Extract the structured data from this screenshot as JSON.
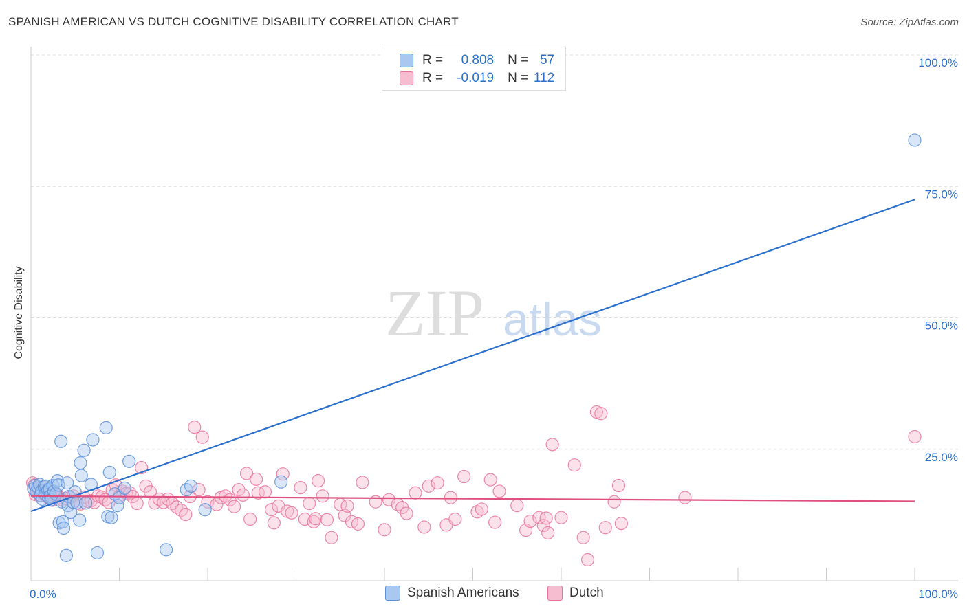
{
  "header": {
    "title": "SPANISH AMERICAN VS DUTCH COGNITIVE DISABILITY CORRELATION CHART",
    "source": "Source: ZipAtlas.com"
  },
  "watermark": {
    "zip": "ZIP",
    "atlas": "atlas"
  },
  "stats": {
    "r_label": "R =",
    "n_label": "N =",
    "rows": [
      {
        "r": "0.808",
        "n": "57"
      },
      {
        "r": "-0.019",
        "n": "112"
      }
    ]
  },
  "legend": {
    "items": [
      "Spanish Americans",
      "Dutch"
    ]
  },
  "colors": {
    "blue_fill": "#a9c8f0",
    "blue_stroke": "#5b8fd8",
    "blue_line": "#2a6fcc",
    "pink_fill": "#f6bcd0",
    "pink_stroke": "#e8739a",
    "pink_line": "#e0507e",
    "tick_label": "#2a6fcc",
    "grid": "#dcdcdc"
  },
  "chart_data": {
    "type": "scatter",
    "title": "SPANISH AMERICAN VS DUTCH COGNITIVE DISABILITY CORRELATION CHART",
    "xlabel": "",
    "ylabel": "Cognitive Disability",
    "xlim": [
      0,
      100
    ],
    "ylim": [
      0,
      100
    ],
    "x_tick_labels": [
      "0.0%",
      "100.0%"
    ],
    "y_ticks": [
      25,
      50,
      75,
      100
    ],
    "y_tick_labels": [
      "25.0%",
      "50.0%",
      "75.0%",
      "100.0%"
    ],
    "grid": true,
    "series": [
      {
        "name": "Spanish Americans",
        "r": 0.808,
        "n": 57,
        "trend": [
          [
            0,
            13.2
          ],
          [
            100,
            72.5
          ]
        ],
        "points": [
          [
            0.3,
            17.5
          ],
          [
            0.5,
            18.1
          ],
          [
            0.6,
            16.9
          ],
          [
            0.8,
            17.8
          ],
          [
            1.0,
            18.3
          ],
          [
            1.1,
            16.2
          ],
          [
            1.2,
            17.0
          ],
          [
            1.3,
            15.5
          ],
          [
            1.5,
            17.9
          ],
          [
            1.6,
            16.5
          ],
          [
            1.7,
            18.0
          ],
          [
            1.8,
            16.8
          ],
          [
            1.9,
            17.2
          ],
          [
            2.0,
            15.9
          ],
          [
            2.1,
            17.4
          ],
          [
            2.2,
            16.1
          ],
          [
            2.3,
            15.4
          ],
          [
            2.5,
            18.1
          ],
          [
            2.6,
            17.0
          ],
          [
            2.8,
            16.5
          ],
          [
            3.0,
            19.0
          ],
          [
            3.1,
            18.2
          ],
          [
            3.2,
            11.0
          ],
          [
            3.4,
            26.5
          ],
          [
            3.5,
            15.0
          ],
          [
            3.6,
            11.2
          ],
          [
            3.7,
            10.0
          ],
          [
            4.0,
            4.8
          ],
          [
            4.1,
            18.6
          ],
          [
            4.2,
            14.3
          ],
          [
            4.3,
            16.0
          ],
          [
            4.5,
            13.0
          ],
          [
            4.8,
            14.9
          ],
          [
            5.0,
            16.9
          ],
          [
            5.2,
            14.8
          ],
          [
            5.5,
            11.5
          ],
          [
            5.6,
            22.4
          ],
          [
            5.7,
            20.0
          ],
          [
            6.0,
            24.8
          ],
          [
            6.2,
            14.8
          ],
          [
            6.8,
            18.3
          ],
          [
            7.0,
            26.8
          ],
          [
            7.5,
            5.3
          ],
          [
            8.5,
            29.1
          ],
          [
            8.7,
            12.2
          ],
          [
            8.9,
            20.6
          ],
          [
            9.1,
            12.0
          ],
          [
            9.5,
            16.5
          ],
          [
            9.8,
            14.3
          ],
          [
            10.0,
            15.8
          ],
          [
            10.6,
            17.6
          ],
          [
            11.1,
            22.7
          ],
          [
            15.3,
            5.9
          ],
          [
            17.6,
            17.3
          ],
          [
            18.1,
            18.0
          ],
          [
            19.7,
            13.5
          ],
          [
            28.3,
            18.8
          ],
          [
            100,
            83.8
          ]
        ]
      },
      {
        "name": "Dutch",
        "r": -0.019,
        "n": 112,
        "trend": [
          [
            0,
            16.1
          ],
          [
            100,
            15.1
          ]
        ],
        "points": [
          [
            0.2,
            18.6
          ],
          [
            0.4,
            18.2
          ],
          [
            0.5,
            16.4
          ],
          [
            0.7,
            16.9
          ],
          [
            0.8,
            17.5
          ],
          [
            1.0,
            16.2
          ],
          [
            1.2,
            17.2
          ],
          [
            1.3,
            16.7
          ],
          [
            1.4,
            17.7
          ],
          [
            1.6,
            16.2
          ],
          [
            1.7,
            17.3
          ],
          [
            1.9,
            16.0
          ],
          [
            2.0,
            15.7
          ],
          [
            2.2,
            16.4
          ],
          [
            2.4,
            15.3
          ],
          [
            2.6,
            17.0
          ],
          [
            2.8,
            16.0
          ],
          [
            3.0,
            16.3
          ],
          [
            3.3,
            15.8
          ],
          [
            3.6,
            15.3
          ],
          [
            4.0,
            15.6
          ],
          [
            4.4,
            15.8
          ],
          [
            4.8,
            16.1
          ],
          [
            5.2,
            15.3
          ],
          [
            5.6,
            14.6
          ],
          [
            6.0,
            15.9
          ],
          [
            6.4,
            15.1
          ],
          [
            6.8,
            15.2
          ],
          [
            7.2,
            14.9
          ],
          [
            7.6,
            16.1
          ],
          [
            8.0,
            15.9
          ],
          [
            8.4,
            15.4
          ],
          [
            8.8,
            14.9
          ],
          [
            9.2,
            17.3
          ],
          [
            9.6,
            18.2
          ],
          [
            10.0,
            16.1
          ],
          [
            10.4,
            17.0
          ],
          [
            10.8,
            16.6
          ],
          [
            11.2,
            16.7
          ],
          [
            11.5,
            16.0
          ],
          [
            12.0,
            14.7
          ],
          [
            12.5,
            21.5
          ],
          [
            13.0,
            18.0
          ],
          [
            13.5,
            16.9
          ],
          [
            14.0,
            14.8
          ],
          [
            14.5,
            15.5
          ],
          [
            15.0,
            14.9
          ],
          [
            15.5,
            15.5
          ],
          [
            16.0,
            14.7
          ],
          [
            16.5,
            14.0
          ],
          [
            17.0,
            13.4
          ],
          [
            17.5,
            12.6
          ],
          [
            18.0,
            16.0
          ],
          [
            18.5,
            29.2
          ],
          [
            19.0,
            17.3
          ],
          [
            19.4,
            27.3
          ],
          [
            20.0,
            15.0
          ],
          [
            21.0,
            14.5
          ],
          [
            21.5,
            15.8
          ],
          [
            22.0,
            16.1
          ],
          [
            22.5,
            15.4
          ],
          [
            23.0,
            14.1
          ],
          [
            23.5,
            17.3
          ],
          [
            24.0,
            16.3
          ],
          [
            24.4,
            20.4
          ],
          [
            24.8,
            11.7
          ],
          [
            25.5,
            19.3
          ],
          [
            25.7,
            16.7
          ],
          [
            26.5,
            16.9
          ],
          [
            27.2,
            13.5
          ],
          [
            27.5,
            11.0
          ],
          [
            28.0,
            14.2
          ],
          [
            28.5,
            20.3
          ],
          [
            29.0,
            13.2
          ],
          [
            29.5,
            12.9
          ],
          [
            30.5,
            17.7
          ],
          [
            31.0,
            11.7
          ],
          [
            31.5,
            14.7
          ],
          [
            32.0,
            11.2
          ],
          [
            32.2,
            11.8
          ],
          [
            32.5,
            19.0
          ],
          [
            33.0,
            16.1
          ],
          [
            33.5,
            11.6
          ],
          [
            34.0,
            8.2
          ],
          [
            35.0,
            14.5
          ],
          [
            35.5,
            12.4
          ],
          [
            35.8,
            14.2
          ],
          [
            36.3,
            11.2
          ],
          [
            37.0,
            10.8
          ],
          [
            37.5,
            18.7
          ],
          [
            39.0,
            15.0
          ],
          [
            40.0,
            9.7
          ],
          [
            40.5,
            15.4
          ],
          [
            41.5,
            14.5
          ],
          [
            42.0,
            13.9
          ],
          [
            42.5,
            12.8
          ],
          [
            43.5,
            16.7
          ],
          [
            44.5,
            10.2
          ],
          [
            45.0,
            18.0
          ],
          [
            46.0,
            18.6
          ],
          [
            47.0,
            10.6
          ],
          [
            47.5,
            15.8
          ],
          [
            48.0,
            11.7
          ],
          [
            49.0,
            19.8
          ],
          [
            50.5,
            13.1
          ],
          [
            51.0,
            13.6
          ],
          [
            52.0,
            19.2
          ],
          [
            52.5,
            11.1
          ],
          [
            53.0,
            17.0
          ],
          [
            55.0,
            14.3
          ],
          [
            56.0,
            9.6
          ],
          [
            56.5,
            11.3
          ],
          [
            57.5,
            12.0
          ],
          [
            58.0,
            10.5
          ],
          [
            58.3,
            11.9
          ],
          [
            58.5,
            9.1
          ],
          [
            59.0,
            25.9
          ],
          [
            60.0,
            12.0
          ],
          [
            61.5,
            22.0
          ],
          [
            62.5,
            8.2
          ],
          [
            63.0,
            4.0
          ],
          [
            64.0,
            32.1
          ],
          [
            64.5,
            31.8
          ],
          [
            65.0,
            10.1
          ],
          [
            66.0,
            15.0
          ],
          [
            66.5,
            18.1
          ],
          [
            66.8,
            10.9
          ],
          [
            74.0,
            15.8
          ],
          [
            100,
            27.4
          ]
        ]
      }
    ]
  }
}
